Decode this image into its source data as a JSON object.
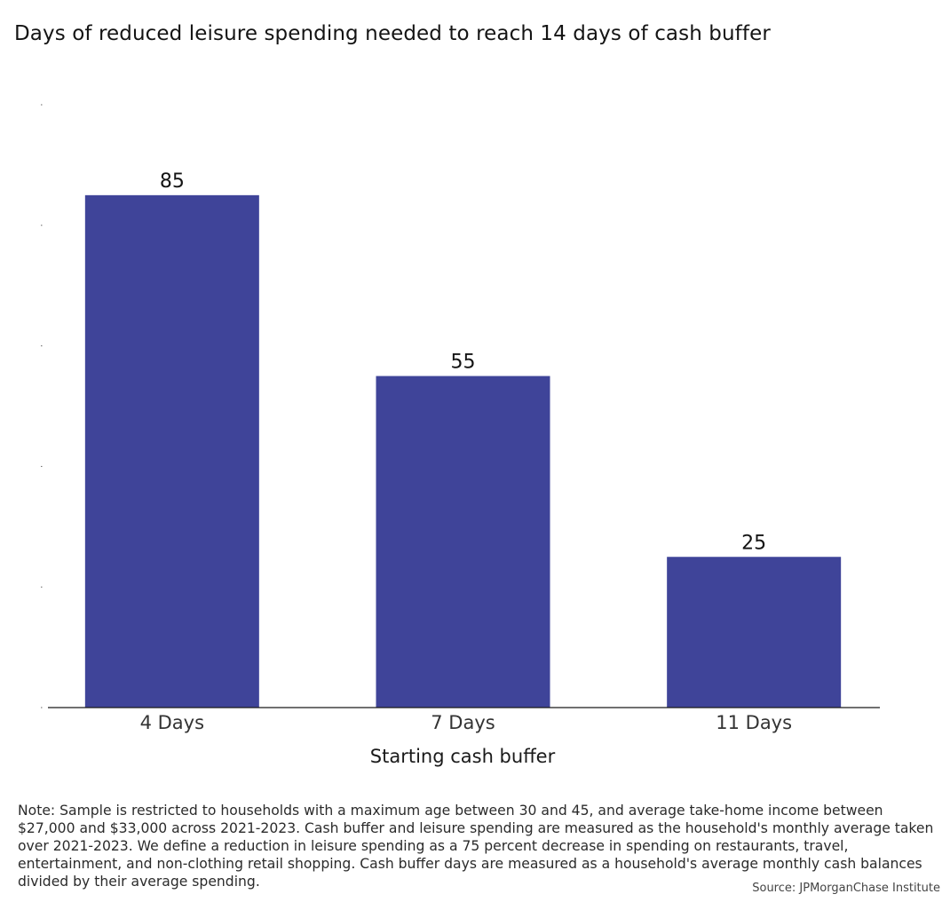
{
  "chart_data": {
    "type": "bar",
    "title": "Days of reduced leisure spending needed to reach 14 days of cash buffer",
    "xlabel": "Starting cash buffer",
    "ylabel": "",
    "categories": [
      "4 Days",
      "7 Days",
      "11 Days"
    ],
    "values": [
      85,
      55,
      25
    ],
    "data_labels": [
      "85",
      "55",
      "25"
    ],
    "ylim": [
      0,
      100
    ],
    "grid": false,
    "legend": "none",
    "bar_color": "#3f4499"
  },
  "note": "Note: Sample is restricted to households with a maximum age between 30 and 45, and average take-home income between $27,000 and $33,000 across 2021-2023. Cash buffer and leisure spending are measured as the household's monthly average taken over 2021-2023. We define a reduction in leisure spending as a 75 percent decrease in spending on restaurants, travel, entertainment, and non-clothing retail shopping. Cash buffer days are measured as a household's average monthly cash balances divided by their average spending.",
  "source": "Source: JPMorganChase Institute"
}
